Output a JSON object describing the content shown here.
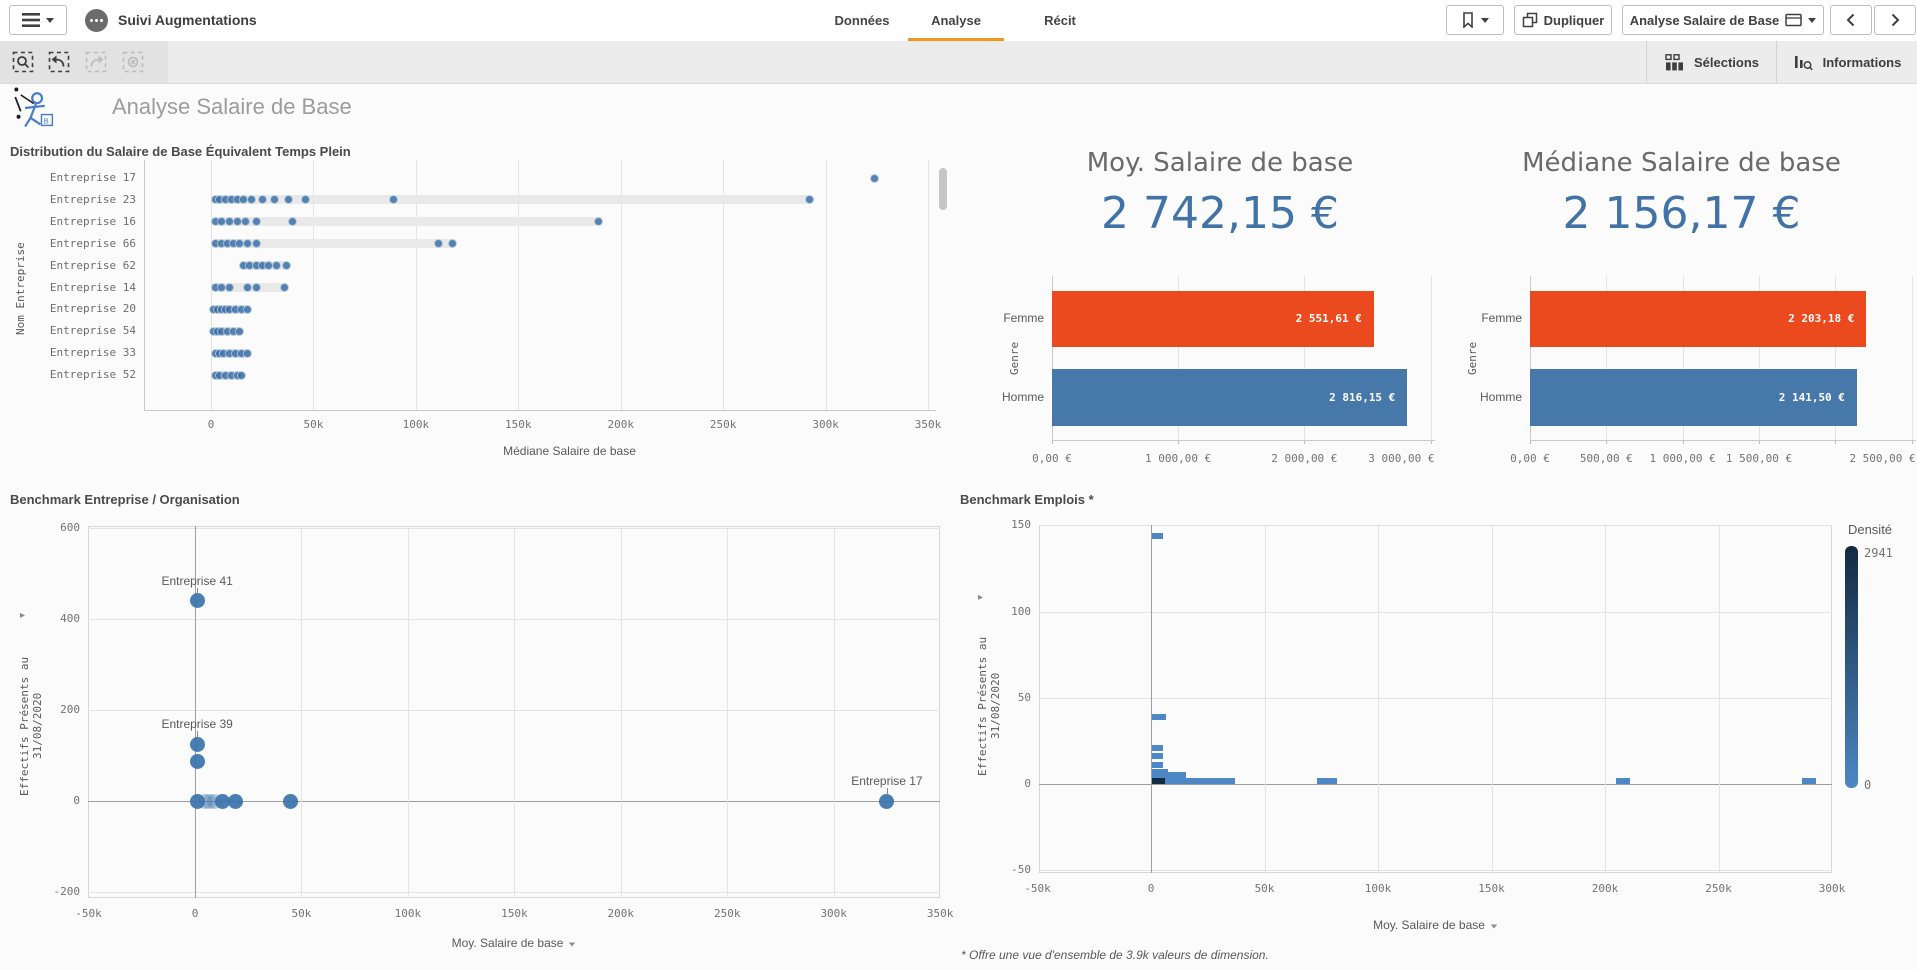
{
  "topbar": {
    "app_title": "Suivi Augmentations",
    "tabs": [
      {
        "label": "Données",
        "active": false
      },
      {
        "label": "Analyse",
        "active": true
      },
      {
        "label": "Récit",
        "active": false
      }
    ],
    "duplicate_label": "Dupliquer",
    "sheet_selector": "Analyse Salaire de Base"
  },
  "toolbar": {
    "selections_label": "Sélections",
    "informations_label": "Informations"
  },
  "sheet": {
    "title": "Analyse Salaire de Base"
  },
  "colors": {
    "accent_orange": "#f0971c",
    "kpi_value_blue": "#4173a6",
    "femme_red": "#ea4a1d",
    "homme_blue": "#4679aa",
    "dot_blue": "#3a70a8",
    "density_max": "#122a40",
    "density_min": "#4d87c5"
  },
  "chart_data": [
    {
      "id": "distribution",
      "type": "strip",
      "title": "Distribution du Salaire de Base Équivalent Temps Plein",
      "xlabel": "Médiane Salaire de base",
      "ylabel": "Nom Entreprise",
      "xlim": [
        0,
        350
      ],
      "x_unit": "k",
      "xticks": [
        {
          "v": 0,
          "label": "0"
        },
        {
          "v": 50,
          "label": "50k"
        },
        {
          "v": 100,
          "label": "100k"
        },
        {
          "v": 150,
          "label": "150k"
        },
        {
          "v": 200,
          "label": "200k"
        },
        {
          "v": 250,
          "label": "250k"
        },
        {
          "v": 300,
          "label": "300k"
        },
        {
          "v": 350,
          "label": "350k"
        }
      ],
      "rows": [
        {
          "name": "Entreprise 17",
          "range": null,
          "points": [
            324
          ]
        },
        {
          "name": "Entreprise 23",
          "range": [
            2,
            295
          ],
          "points": [
            2,
            4,
            7,
            10,
            13,
            16,
            20,
            25,
            31,
            38,
            46,
            89,
            292
          ]
        },
        {
          "name": "Entreprise 16",
          "range": [
            2,
            189
          ],
          "points": [
            2,
            5,
            9,
            13,
            17,
            22,
            40,
            189
          ]
        },
        {
          "name": "Entreprise 66",
          "range": [
            1,
            119
          ],
          "points": [
            2,
            5,
            8,
            11,
            14,
            18,
            22,
            111,
            118
          ]
        },
        {
          "name": "Entreprise 62",
          "range": [
            15,
            38
          ],
          "points": [
            16,
            19,
            22,
            25,
            28,
            32,
            37
          ]
        },
        {
          "name": "Entreprise 14",
          "range": [
            1,
            37
          ],
          "points": [
            2,
            5,
            9,
            18,
            22,
            36
          ]
        },
        {
          "name": "Entreprise 20",
          "range": [
            0,
            19
          ],
          "points": [
            1,
            3,
            5,
            7,
            9,
            12,
            15,
            18
          ]
        },
        {
          "name": "Entreprise 54",
          "range": [
            0,
            15
          ],
          "points": [
            1,
            3,
            5,
            8,
            11,
            14
          ]
        },
        {
          "name": "Entreprise 33",
          "range": [
            1,
            19
          ],
          "points": [
            2,
            4,
            6,
            9,
            12,
            15,
            18
          ]
        },
        {
          "name": "Entreprise 52",
          "range": [
            1,
            16
          ],
          "points": [
            2,
            4,
            7,
            10,
            13,
            15
          ]
        }
      ]
    },
    {
      "id": "kpi_moy",
      "type": "kpi-bar",
      "title": "Moy. Salaire de base",
      "value": "2 742,15 €",
      "ylabel": "Genre",
      "categories": [
        "Femme",
        "Homme"
      ],
      "values": [
        2551.61,
        2816.15
      ],
      "value_labels": [
        "2 551,61 €",
        "2 816,15 €"
      ],
      "bar_colors": [
        "#ea4a1d",
        "#4679aa"
      ],
      "xticks": [
        {
          "v": 0,
          "label": "0,00 €"
        },
        {
          "v": 1000,
          "label": "1 000,00 €"
        },
        {
          "v": 2000,
          "label": "2 000,00 €"
        },
        {
          "v": 3000,
          "label": "3 000,00 €",
          "align": "right"
        }
      ]
    },
    {
      "id": "kpi_median",
      "type": "kpi-bar",
      "title": "Médiane Salaire de base",
      "value": "2 156,17 €",
      "ylabel": "Genre",
      "categories": [
        "Femme",
        "Homme"
      ],
      "values": [
        2203.18,
        2141.5
      ],
      "value_labels": [
        "2 203,18 €",
        "2 141,50 €"
      ],
      "bar_colors": [
        "#ea4a1d",
        "#4679aa"
      ],
      "xticks": [
        {
          "v": 0,
          "label": "0,00 €"
        },
        {
          "v": 500,
          "label": "500,00 €"
        },
        {
          "v": 1000,
          "label": "1 000,00 €"
        },
        {
          "v": 1500,
          "label": "1 500,00 €"
        },
        {
          "v": 2000,
          "label": ""
        },
        {
          "v": 2500,
          "label": "2 500,00 €",
          "align": "right"
        }
      ]
    },
    {
      "id": "benchmark_entreprise",
      "type": "scatter",
      "title": "Benchmark Entreprise / Organisation",
      "xlabel": "Moy. Salaire de base",
      "xlabel_dropdown": true,
      "ylabel": "Effectifs Présents au 31/08/2020",
      "x_unit": "k",
      "xticks": [
        {
          "v": -50,
          "label": "-50k"
        },
        {
          "v": 0,
          "label": "0"
        },
        {
          "v": 50,
          "label": "50k"
        },
        {
          "v": 100,
          "label": "100k"
        },
        {
          "v": 150,
          "label": "150k"
        },
        {
          "v": 200,
          "label": "200k"
        },
        {
          "v": 250,
          "label": "250k"
        },
        {
          "v": 300,
          "label": "300k"
        },
        {
          "v": 350,
          "label": "350k"
        }
      ],
      "yticks": [
        {
          "v": 600,
          "label": "600"
        },
        {
          "v": 400,
          "label": "400"
        },
        {
          "v": 200,
          "label": "200"
        },
        {
          "v": 0,
          "label": "0"
        },
        {
          "v": -200,
          "label": "-200"
        }
      ],
      "points": [
        {
          "x": 1,
          "y": 440,
          "label": "Entreprise 41"
        },
        {
          "x": 1,
          "y": 125,
          "label": "Entreprise 39"
        },
        {
          "x": 1,
          "y": 86
        },
        {
          "x": 1,
          "y": 0
        },
        {
          "x": 5,
          "y": 0,
          "faded": true
        },
        {
          "x": 7,
          "y": 0,
          "faded": true
        },
        {
          "x": 9,
          "y": 0,
          "faded": true
        },
        {
          "x": 13,
          "y": 0
        },
        {
          "x": 19,
          "y": 0
        },
        {
          "x": 45,
          "y": 0
        },
        {
          "x": 325,
          "y": 0,
          "label": "Entreprise 17"
        }
      ]
    },
    {
      "id": "benchmark_emplois",
      "type": "density",
      "title": "Benchmark Emplois *",
      "xlabel": "Moy. Salaire de base",
      "xlabel_dropdown": true,
      "ylabel": "Effectifs Présents au 31/08/2020",
      "footnote": "* Offre une vue d'ensemble de 3.9k valeurs de dimension.",
      "legend": {
        "title": "Densité",
        "max": "2941",
        "min": "0"
      },
      "x_unit": "k",
      "xticks": [
        {
          "v": -50,
          "label": "-50k"
        },
        {
          "v": 0,
          "label": "0"
        },
        {
          "v": 50,
          "label": "50k"
        },
        {
          "v": 100,
          "label": "100k"
        },
        {
          "v": 150,
          "label": "150k"
        },
        {
          "v": 200,
          "label": "200k"
        },
        {
          "v": 250,
          "label": "250k"
        },
        {
          "v": 300,
          "label": "300k"
        }
      ],
      "yticks": [
        {
          "v": 150,
          "label": "150"
        },
        {
          "v": 100,
          "label": "100"
        },
        {
          "v": 50,
          "label": "50"
        },
        {
          "v": 0,
          "label": "0"
        },
        {
          "v": -50,
          "label": "-50"
        }
      ],
      "marks": [
        {
          "x": 0.5,
          "y": 144,
          "w": 5
        },
        {
          "x": 0.5,
          "y": 39,
          "w": 6
        },
        {
          "x": 0.5,
          "y": 21,
          "w": 5
        },
        {
          "x": 0.5,
          "y": 16,
          "w": 5
        },
        {
          "x": 0.5,
          "y": 11,
          "w": 5
        },
        {
          "x": 0.5,
          "y": 7,
          "w": 7
        },
        {
          "x": 0.5,
          "y": 5,
          "w": 15
        },
        {
          "x": 0.5,
          "y": 1.5,
          "w": 6,
          "dark": true
        },
        {
          "x": 6,
          "y": 2,
          "w": 31
        },
        {
          "x": 73,
          "y": 2,
          "w": 9
        },
        {
          "x": 205,
          "y": 2,
          "w": 6
        },
        {
          "x": 287,
          "y": 2,
          "w": 6
        }
      ]
    }
  ]
}
